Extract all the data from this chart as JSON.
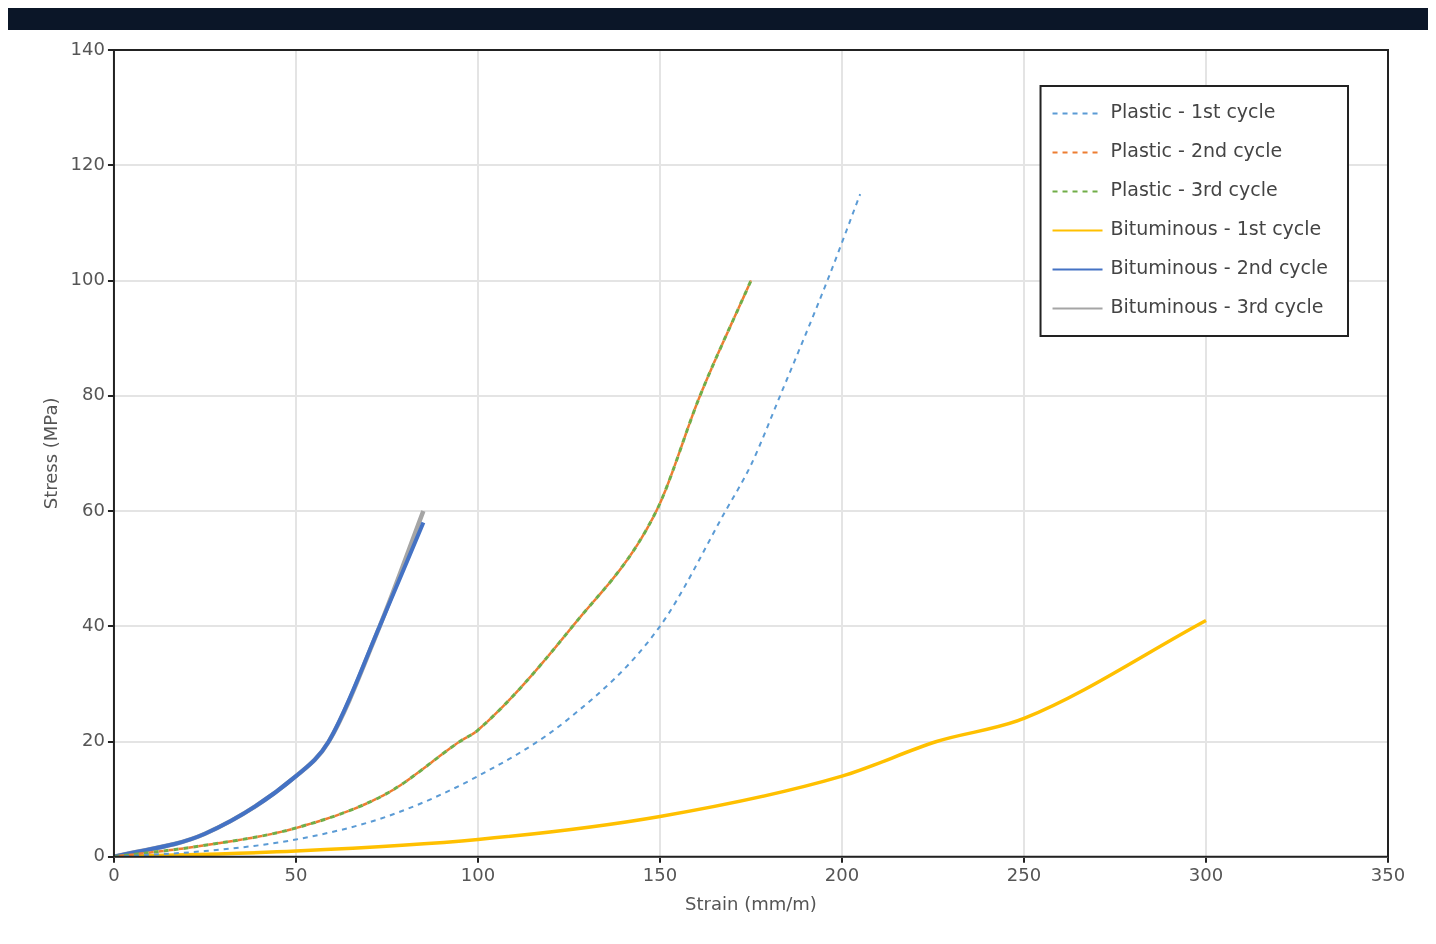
{
  "chart_data": {
    "type": "line",
    "xlabel": "Strain (mm/m)",
    "ylabel": "Stress (MPa)",
    "xlim": [
      0,
      350
    ],
    "xticks": [
      0,
      50,
      100,
      150,
      200,
      250,
      300,
      350
    ],
    "ylim": [
      0,
      140
    ],
    "yticks": [
      0,
      20,
      40,
      60,
      80,
      100,
      120,
      140
    ],
    "grid": true,
    "legend": "top right",
    "marker": "none",
    "series": [
      {
        "name": "Plastic - 1st cycle",
        "color": "#5b9bd5",
        "line_style": "dashed",
        "x": [
          0,
          25,
          50,
          75,
          100,
          125,
          150,
          168,
          175,
          183,
          196,
          205
        ],
        "values": [
          0,
          1,
          3,
          7,
          14,
          24,
          40,
          60,
          68,
          80,
          100,
          115
        ]
      },
      {
        "name": "Plastic - 2nd cycle",
        "color": "#ed7d31",
        "line_style": "dashed",
        "x": [
          0,
          25,
          50,
          75,
          95,
          100,
          126,
          149,
          161,
          175
        ],
        "values": [
          0,
          2,
          5,
          11,
          20,
          22,
          40,
          60,
          80,
          100
        ]
      },
      {
        "name": "Plastic - 3rd cycle",
        "color": "#70ad47",
        "line_style": "dashed",
        "x": [
          0,
          25,
          50,
          75,
          95,
          100,
          126,
          149,
          161,
          175
        ],
        "values": [
          0,
          2,
          5,
          11,
          20,
          22,
          40,
          60,
          80,
          100
        ]
      },
      {
        "name": "Bituminous - 1st cycle",
        "color": "#ffc000",
        "line_style": "solid",
        "x": [
          0,
          50,
          100,
          150,
          200,
          226,
          250,
          300
        ],
        "values": [
          0,
          1,
          3,
          7,
          14,
          20,
          24,
          41
        ]
      },
      {
        "name": "Bituminous - 2nd cycle",
        "color": "#4472c4",
        "line_style": "solid",
        "x": [
          0,
          25,
          50,
          59,
          73,
          85
        ],
        "values": [
          0,
          4,
          14,
          20,
          40,
          58
        ]
      },
      {
        "name": "Bituminous - 3rd cycle",
        "color": "#a5a5a5",
        "line_style": "solid",
        "x": [
          0,
          25,
          50,
          59,
          73,
          85
        ],
        "values": [
          0,
          4,
          14,
          20,
          40,
          60
        ]
      }
    ]
  }
}
